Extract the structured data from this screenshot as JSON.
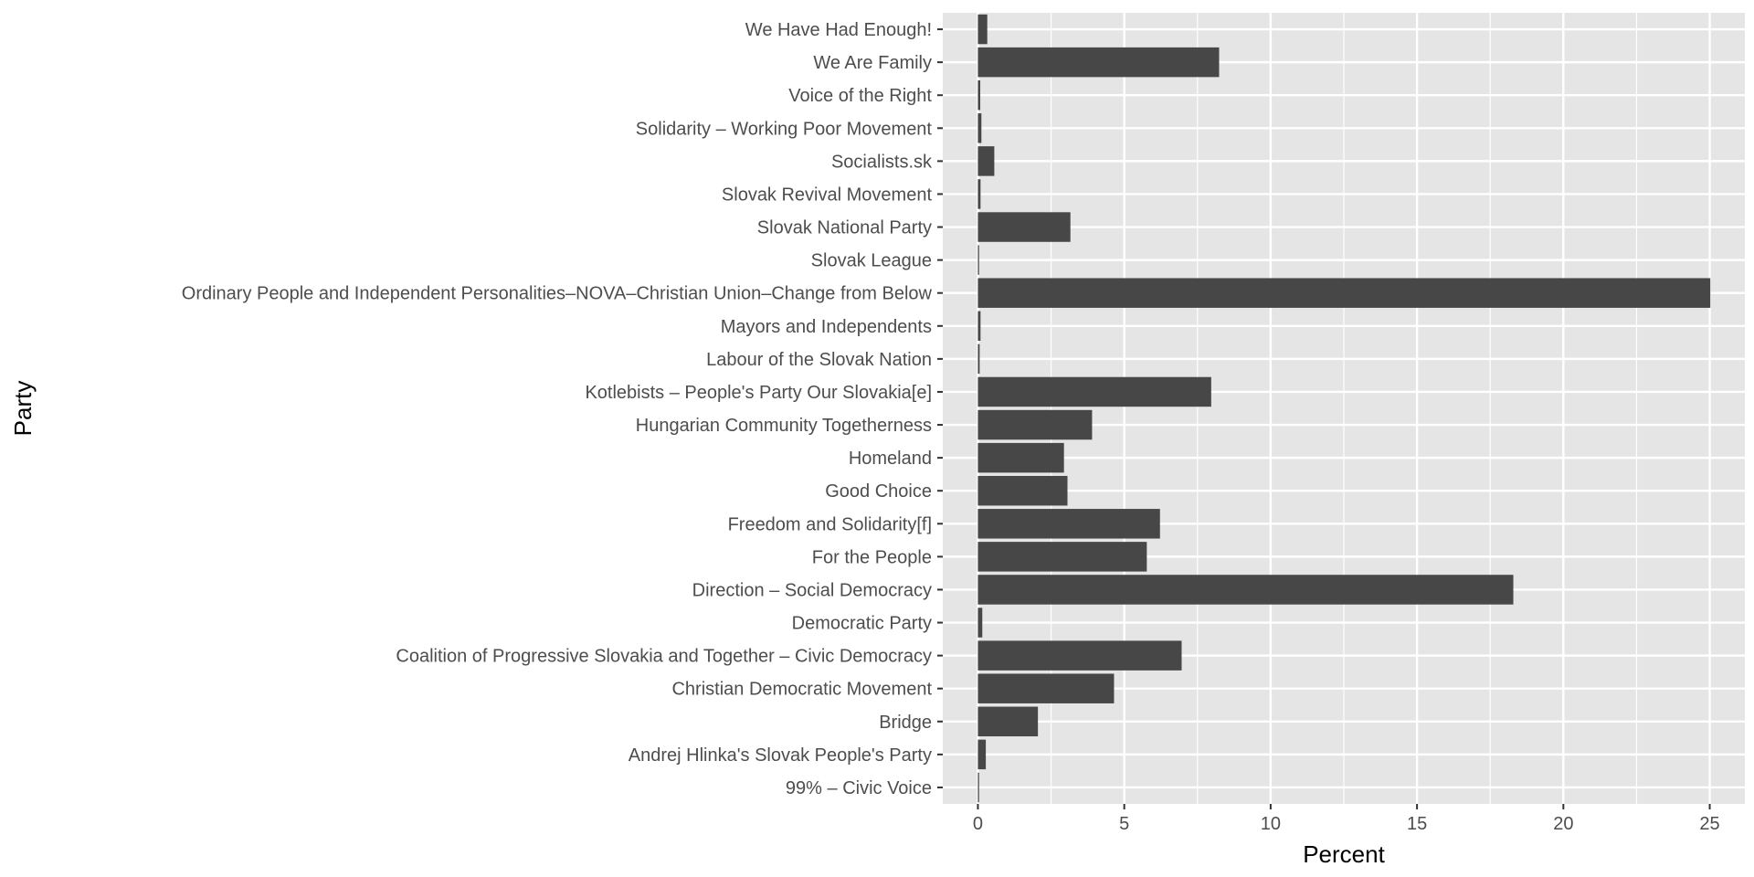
{
  "chart_data": {
    "type": "bar",
    "orientation": "horizontal",
    "categories": [
      "We Have Had Enough!",
      "We Are Family",
      "Voice of the Right",
      "Solidarity – Working Poor Movement",
      "Socialists.sk",
      "Slovak Revival Movement",
      "Slovak National Party",
      "Slovak League",
      "Ordinary People and Independent Personalities–NOVA–Christian Union–Change from Below",
      "Mayors and Independents",
      "Labour of the Slovak Nation",
      "Kotlebists – People's Party Our Slovakia[e]",
      "Hungarian Community Togetherness",
      "Homeland",
      "Good Choice",
      "Freedom and Solidarity[f]",
      "For the People",
      "Direction – Social Democracy",
      "Democratic Party",
      "Coalition of Progressive Slovakia and Together – Civic Democracy",
      "Christian Democratic Movement",
      "Bridge",
      "Andrej Hlinka's Slovak People's Party",
      "99% – Civic Voice"
    ],
    "values": [
      0.32,
      8.24,
      0.08,
      0.12,
      0.56,
      0.09,
      3.16,
      0.04,
      25.02,
      0.09,
      0.06,
      7.97,
      3.9,
      2.94,
      3.06,
      6.22,
      5.77,
      18.29,
      0.15,
      6.96,
      4.65,
      2.05,
      0.27,
      0.04
    ],
    "xlabel": "Percent",
    "ylabel": "Party",
    "xlim": [
      -1.2,
      26.2
    ],
    "xticks": [
      0,
      5,
      10,
      15,
      20,
      25
    ],
    "grid": true,
    "bar_color": "#474747",
    "panel_color": "#e5e5e5",
    "grid_color": "#ffffff"
  }
}
